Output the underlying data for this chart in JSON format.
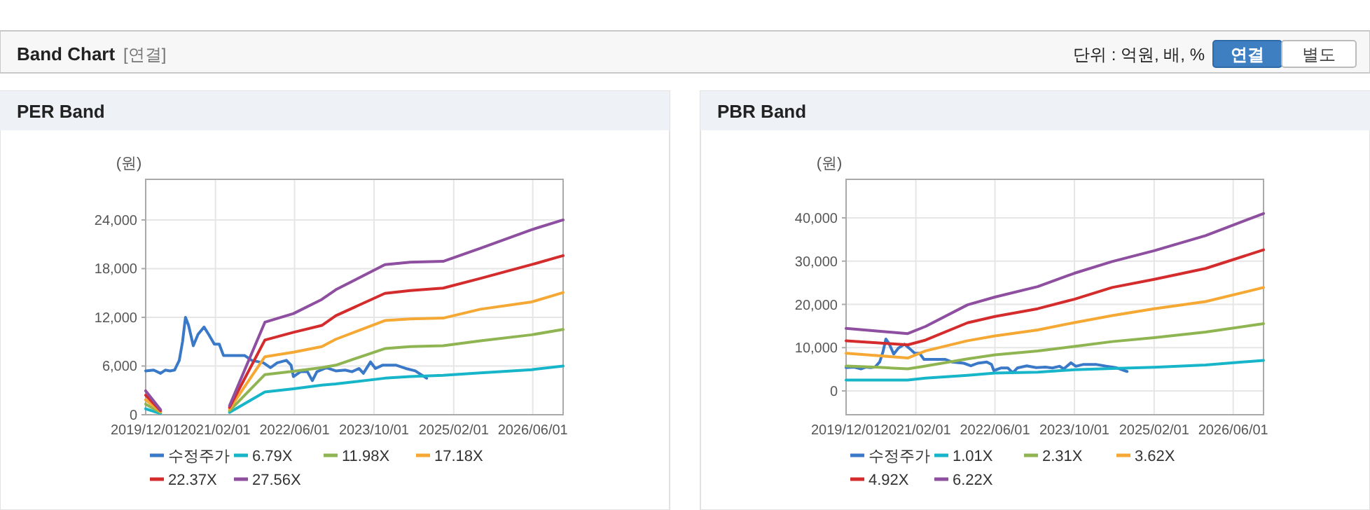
{
  "chart_data": [
    {
      "type": "other",
      "title": "Band Chart",
      "subtitle": "[연결]",
      "annotations": [
        "단위 : 억원, 배, %",
        "연결",
        "별도"
      ]
    },
    {
      "type": "line",
      "title": "PER Band",
      "ylabel": "(원)",
      "grid": true,
      "legend": "bottom",
      "x": [
        "2019-12-01",
        "2020-03-01",
        "2020-08-01",
        "2021-04-28",
        "2021-12-01",
        "2022-05-25",
        "2022-11-15",
        "2023-02-09",
        "2023-12-07",
        "2024-05-10",
        "2024-11-28",
        "2025-07-15",
        "2026-05-25",
        "2026-12-04"
      ],
      "xlim": [
        "2019-12-01",
        "2026-12-04"
      ],
      "xticks": [
        {
          "value": "2019-12-01",
          "label": "2019/12/01"
        },
        {
          "value": "2021-02-01",
          "label": "2021/02/01"
        },
        {
          "value": "2022-06-01",
          "label": "2022/06/01"
        },
        {
          "value": "2023-10-01",
          "label": "2023/10/01"
        },
        {
          "value": "2025-02-01",
          "label": "2025/02/01"
        },
        {
          "value": "2026-06-01",
          "label": "2026/06/01"
        }
      ],
      "ylim": [
        0,
        29000
      ],
      "yticks": [
        0,
        {
          "value": 6000,
          "label": "6,000"
        },
        {
          "value": 12000,
          "label": "12,000"
        },
        {
          "value": 18000,
          "label": "18,000"
        },
        {
          "value": 24000,
          "label": "24,000"
        }
      ],
      "series": [
        {
          "name": "수정주가",
          "color": "#3a78c8",
          "x": [
            "2019-12-01",
            "2020-01-19",
            "2020-03-01",
            "2020-03-30",
            "2020-04-28",
            "2020-05-26",
            "2020-06-24",
            "2020-07-14",
            "2020-08-01",
            "2020-08-20",
            "2020-09-18",
            "2020-10-17",
            "2020-11-23",
            "2020-12-21",
            "2021-01-25",
            "2021-02-24",
            "2021-03-22",
            "2021-05-18",
            "2021-07-29",
            "2021-09-11",
            "2021-11-22",
            "2022-01-04",
            "2022-02-15",
            "2022-04-12",
            "2022-05-11",
            "2022-05-25",
            "2022-07-07",
            "2022-08-19",
            "2022-09-18",
            "2022-10-16",
            "2022-12-13",
            "2023-02-09",
            "2023-04-07",
            "2023-05-19",
            "2023-07-01",
            "2023-07-28",
            "2023-09-10",
            "2023-10-10",
            "2023-11-22",
            "2024-02-15",
            "2024-04-13",
            "2024-06-10",
            "2024-08-19"
          ],
          "values": [
            5400,
            5500,
            5100,
            5500,
            5400,
            5500,
            6700,
            9000,
            12000,
            11000,
            8500,
            9900,
            10800,
            9900,
            8700,
            8700,
            7300,
            7300,
            7300,
            6700,
            6400,
            5800,
            6400,
            6700,
            6100,
            4700,
            5300,
            5300,
            4200,
            5300,
            5800,
            5400,
            5500,
            5300,
            5700,
            5100,
            6500,
            5700,
            6100,
            6100,
            5700,
            5400,
            4500
          ]
        },
        {
          "name": "6.79X",
          "color": "#17b5c9",
          "values": [
            730,
            150,
            null,
            280,
            2800,
            3200,
            3650,
            3800,
            4500,
            4700,
            4850,
            5150,
            5550,
            6000
          ]
        },
        {
          "name": "11.98X",
          "color": "#8fb552",
          "values": [
            1300,
            270,
            null,
            480,
            4950,
            5350,
            5800,
            6100,
            8150,
            8400,
            8500,
            9100,
            9850,
            10500
          ]
        },
        {
          "name": "17.18X",
          "color": "#f5a833",
          "values": [
            1850,
            390,
            null,
            700,
            7150,
            7700,
            8400,
            9300,
            11600,
            11800,
            11900,
            13000,
            13900,
            15050
          ]
        },
        {
          "name": "22.37X",
          "color": "#d42c2c",
          "values": [
            2400,
            500,
            null,
            900,
            9200,
            10150,
            11000,
            12200,
            14950,
            15300,
            15600,
            16800,
            18500,
            19600
          ]
        },
        {
          "name": "27.56X",
          "color": "#8e4fa0",
          "values": [
            2940,
            630,
            null,
            1100,
            11400,
            12460,
            14200,
            15400,
            18500,
            18800,
            18900,
            20500,
            22800,
            24000
          ]
        }
      ]
    },
    {
      "type": "line",
      "title": "PBR Band",
      "ylabel": "(원)",
      "grid": true,
      "legend": "bottom",
      "x": [
        "2019-12-01",
        "2020-06-18",
        "2020-12-13",
        "2021-04-01",
        "2021-12-15",
        "2022-06-01",
        "2023-02-18",
        "2023-10-01",
        "2024-05-19",
        "2025-02-01",
        "2025-12-13",
        "2026-12-04"
      ],
      "xlim": [
        "2019-12-01",
        "2026-12-04"
      ],
      "xticks": [
        {
          "value": "2019-12-01",
          "label": "2019/12/01"
        },
        {
          "value": "2021-02-01",
          "label": "2021/02/01"
        },
        {
          "value": "2022-06-01",
          "label": "2022/06/01"
        },
        {
          "value": "2023-10-01",
          "label": "2023/10/01"
        },
        {
          "value": "2025-02-01",
          "label": "2025/02/01"
        },
        {
          "value": "2026-06-01",
          "label": "2026/06/01"
        }
      ],
      "ylim": [
        -5500,
        48900
      ],
      "yticks": [
        0,
        {
          "value": 10000,
          "label": "10,000"
        },
        {
          "value": 20000,
          "label": "20,000"
        },
        {
          "value": 30000,
          "label": "30,000"
        },
        {
          "value": 40000,
          "label": "40,000"
        }
      ],
      "series": [
        {
          "name": "수정주가",
          "color": "#3a78c8",
          "x": [
            "2019-12-01",
            "2020-01-19",
            "2020-03-01",
            "2020-03-30",
            "2020-04-28",
            "2020-05-26",
            "2020-06-24",
            "2020-07-14",
            "2020-08-01",
            "2020-08-20",
            "2020-09-18",
            "2020-10-17",
            "2020-11-23",
            "2020-12-21",
            "2021-01-25",
            "2021-02-24",
            "2021-03-22",
            "2021-05-18",
            "2021-07-29",
            "2021-09-11",
            "2021-11-22",
            "2022-01-04",
            "2022-02-15",
            "2022-04-12",
            "2022-05-11",
            "2022-05-25",
            "2022-07-07",
            "2022-08-19",
            "2022-09-18",
            "2022-10-16",
            "2022-12-13",
            "2023-02-09",
            "2023-04-07",
            "2023-05-19",
            "2023-07-01",
            "2023-07-28",
            "2023-09-10",
            "2023-10-10",
            "2023-11-22",
            "2024-02-15",
            "2024-04-13",
            "2024-06-10",
            "2024-08-19"
          ],
          "values": [
            5400,
            5500,
            5100,
            5500,
            5400,
            5500,
            6700,
            9000,
            12000,
            11000,
            8500,
            9900,
            10800,
            9900,
            8700,
            8700,
            7300,
            7300,
            7300,
            6700,
            6400,
            5800,
            6400,
            6700,
            6100,
            4700,
            5300,
            5300,
            4200,
            5300,
            5800,
            5400,
            5500,
            5300,
            5700,
            5100,
            6500,
            5700,
            6100,
            6100,
            5700,
            5400,
            4500
          ]
        },
        {
          "name": "1.01X",
          "color": "#17b5c9",
          "values": [
            2500,
            2500,
            2500,
            2950,
            3600,
            4150,
            4350,
            4900,
            5200,
            5450,
            6000,
            7050
          ]
        },
        {
          "name": "2.31X",
          "color": "#8fb552",
          "values": [
            5750,
            5450,
            5100,
            5750,
            7400,
            8350,
            9250,
            10300,
            11400,
            12300,
            13600,
            15550
          ]
        },
        {
          "name": "3.62X",
          "color": "#f5a833",
          "values": [
            8700,
            8150,
            7600,
            9250,
            11600,
            12700,
            14100,
            15800,
            17400,
            19000,
            20650,
            23900
          ]
        },
        {
          "name": "4.92X",
          "color": "#d42c2c",
          "values": [
            11600,
            11100,
            10650,
            11750,
            15750,
            17200,
            19000,
            21200,
            23900,
            25800,
            28300,
            32600
          ]
        },
        {
          "name": "6.22X",
          "color": "#8e4fa0",
          "values": [
            14450,
            13800,
            13250,
            14900,
            19900,
            21700,
            24100,
            27200,
            29900,
            32400,
            35900,
            41000
          ]
        }
      ]
    }
  ]
}
